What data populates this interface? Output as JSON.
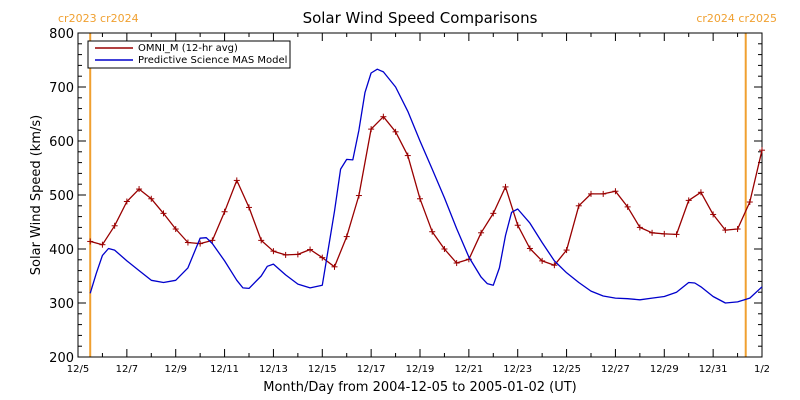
{
  "colors": {
    "omni": "#990000",
    "model": "#0000cc",
    "rotation_marker": "#f0a030",
    "axis": "#000000"
  },
  "chart_data": {
    "type": "line",
    "title": "Solar Wind Speed Comparisons",
    "xlabel": "Month/Day from 2004-12-05 to 2005-01-02 (UT)",
    "ylabel": "Solar Wind Speed (km/s)",
    "xlim": [
      "2004-12-05",
      "2005-01-02"
    ],
    "ylim": [
      200,
      800
    ],
    "x_ticks": [
      {
        "date": "2004-12-05",
        "label": "12/5"
      },
      {
        "date": "2004-12-07",
        "label": "12/7"
      },
      {
        "date": "2004-12-09",
        "label": "12/9"
      },
      {
        "date": "2004-12-11",
        "label": "12/11"
      },
      {
        "date": "2004-12-13",
        "label": "12/13"
      },
      {
        "date": "2004-12-15",
        "label": "12/15"
      },
      {
        "date": "2004-12-17",
        "label": "12/17"
      },
      {
        "date": "2004-12-19",
        "label": "12/19"
      },
      {
        "date": "2004-12-21",
        "label": "12/21"
      },
      {
        "date": "2004-12-23",
        "label": "12/23"
      },
      {
        "date": "2004-12-25",
        "label": "12/25"
      },
      {
        "date": "2004-12-27",
        "label": "12/27"
      },
      {
        "date": "2004-12-29",
        "label": "12/29"
      },
      {
        "date": "2004-12-31",
        "label": "12/31"
      },
      {
        "date": "2005-01-02",
        "label": "1/2"
      }
    ],
    "y_ticks": [
      200,
      300,
      400,
      500,
      600,
      700,
      800
    ],
    "legend_position": "top-left",
    "rotation_markers": [
      {
        "date": "2004-12-05 12:00",
        "label": "cr2023 cr2024",
        "align": "left"
      },
      {
        "date": "2005-01-01 08:00",
        "label": "cr2024 cr2025",
        "align": "right"
      }
    ],
    "series": [
      {
        "name": "OMNI_M (12-hr avg)",
        "color_key": "omni",
        "markers": true,
        "points": [
          [
            "2004-12-05 12:00",
            414
          ],
          [
            "2004-12-06 00:00",
            408
          ],
          [
            "2004-12-06 12:00",
            443
          ],
          [
            "2004-12-07 00:00",
            488
          ],
          [
            "2004-12-07 12:00",
            511
          ],
          [
            "2004-12-08 00:00",
            493
          ],
          [
            "2004-12-08 12:00",
            466
          ],
          [
            "2004-12-09 00:00",
            437
          ],
          [
            "2004-12-09 12:00",
            412
          ],
          [
            "2004-12-10 00:00",
            410
          ],
          [
            "2004-12-10 12:00",
            416
          ],
          [
            "2004-12-11 00:00",
            469
          ],
          [
            "2004-12-11 12:00",
            527
          ],
          [
            "2004-12-12 00:00",
            477
          ],
          [
            "2004-12-12 12:00",
            416
          ],
          [
            "2004-12-13 00:00",
            396
          ],
          [
            "2004-12-13 12:00",
            389
          ],
          [
            "2004-12-14 00:00",
            390
          ],
          [
            "2004-12-14 12:00",
            399
          ],
          [
            "2004-12-15 00:00",
            384
          ],
          [
            "2004-12-15 12:00",
            367
          ],
          [
            "2004-12-16 00:00",
            423
          ],
          [
            "2004-12-16 12:00",
            499
          ],
          [
            "2004-12-17 00:00",
            622
          ],
          [
            "2004-12-17 12:00",
            645
          ],
          [
            "2004-12-18 00:00",
            617
          ],
          [
            "2004-12-18 12:00",
            573
          ],
          [
            "2004-12-19 00:00",
            493
          ],
          [
            "2004-12-19 12:00",
            432
          ],
          [
            "2004-12-20 00:00",
            400
          ],
          [
            "2004-12-20 12:00",
            374
          ],
          [
            "2004-12-21 00:00",
            381
          ],
          [
            "2004-12-21 12:00",
            430
          ],
          [
            "2004-12-22 00:00",
            466
          ],
          [
            "2004-12-22 12:00",
            515
          ],
          [
            "2004-12-23 00:00",
            444
          ],
          [
            "2004-12-23 12:00",
            401
          ],
          [
            "2004-12-24 00:00",
            378
          ],
          [
            "2004-12-24 12:00",
            370
          ],
          [
            "2004-12-25 00:00",
            398
          ],
          [
            "2004-12-25 12:00",
            480
          ],
          [
            "2004-12-26 00:00",
            502
          ],
          [
            "2004-12-26 12:00",
            502
          ],
          [
            "2004-12-27 00:00",
            507
          ],
          [
            "2004-12-27 12:00",
            478
          ],
          [
            "2004-12-28 00:00",
            440
          ],
          [
            "2004-12-28 12:00",
            430
          ],
          [
            "2004-12-29 00:00",
            428
          ],
          [
            "2004-12-29 12:00",
            427
          ],
          [
            "2004-12-30 00:00",
            490
          ],
          [
            "2004-12-30 12:00",
            505
          ],
          [
            "2004-12-31 00:00",
            464
          ],
          [
            "2004-12-31 12:00",
            435
          ],
          [
            "2005-01-01 00:00",
            437
          ],
          [
            "2005-01-01 12:00",
            487
          ],
          [
            "2005-01-02 00:00",
            583
          ]
        ]
      },
      {
        "name": "Predictive Science MAS Model",
        "color_key": "model",
        "markers": false,
        "points": [
          [
            "2004-12-05 12:00",
            318
          ],
          [
            "2004-12-05 18:00",
            355
          ],
          [
            "2004-12-06 00:00",
            388
          ],
          [
            "2004-12-06 06:00",
            401
          ],
          [
            "2004-12-06 12:00",
            398
          ],
          [
            "2004-12-07 00:00",
            378
          ],
          [
            "2004-12-07 12:00",
            360
          ],
          [
            "2004-12-08 00:00",
            342
          ],
          [
            "2004-12-08 12:00",
            338
          ],
          [
            "2004-12-09 00:00",
            342
          ],
          [
            "2004-12-09 12:00",
            365
          ],
          [
            "2004-12-10 00:00",
            420
          ],
          [
            "2004-12-10 06:00",
            421
          ],
          [
            "2004-12-10 12:00",
            410
          ],
          [
            "2004-12-11 00:00",
            378
          ],
          [
            "2004-12-11 12:00",
            342
          ],
          [
            "2004-12-11 18:00",
            328
          ],
          [
            "2004-12-12 00:00",
            327
          ],
          [
            "2004-12-12 12:00",
            350
          ],
          [
            "2004-12-12 18:00",
            368
          ],
          [
            "2004-12-13 00:00",
            372
          ],
          [
            "2004-12-13 12:00",
            352
          ],
          [
            "2004-12-14 00:00",
            335
          ],
          [
            "2004-12-14 12:00",
            328
          ],
          [
            "2004-12-15 00:00",
            333
          ],
          [
            "2004-12-15 12:00",
            470
          ],
          [
            "2004-12-15 18:00",
            548
          ],
          [
            "2004-12-16 00:00",
            566
          ],
          [
            "2004-12-16 06:00",
            565
          ],
          [
            "2004-12-16 12:00",
            620
          ],
          [
            "2004-12-16 18:00",
            690
          ],
          [
            "2004-12-17 00:00",
            726
          ],
          [
            "2004-12-17 06:00",
            733
          ],
          [
            "2004-12-17 12:00",
            728
          ],
          [
            "2004-12-18 00:00",
            700
          ],
          [
            "2004-12-18 12:00",
            655
          ],
          [
            "2004-12-19 00:00",
            600
          ],
          [
            "2004-12-19 12:00",
            548
          ],
          [
            "2004-12-20 00:00",
            495
          ],
          [
            "2004-12-20 12:00",
            438
          ],
          [
            "2004-12-21 00:00",
            385
          ],
          [
            "2004-12-21 12:00",
            348
          ],
          [
            "2004-12-21 18:00",
            336
          ],
          [
            "2004-12-22 00:00",
            333
          ],
          [
            "2004-12-22 06:00",
            365
          ],
          [
            "2004-12-22 12:00",
            425
          ],
          [
            "2004-12-22 18:00",
            468
          ],
          [
            "2004-12-23 00:00",
            474
          ],
          [
            "2004-12-23 12:00",
            448
          ],
          [
            "2004-12-24 00:00",
            412
          ],
          [
            "2004-12-24 12:00",
            378
          ],
          [
            "2004-12-25 00:00",
            356
          ],
          [
            "2004-12-25 12:00",
            338
          ],
          [
            "2004-12-26 00:00",
            322
          ],
          [
            "2004-12-26 12:00",
            313
          ],
          [
            "2004-12-27 00:00",
            309
          ],
          [
            "2004-12-27 12:00",
            308
          ],
          [
            "2004-12-28 00:00",
            306
          ],
          [
            "2004-12-28 12:00",
            309
          ],
          [
            "2004-12-29 00:00",
            312
          ],
          [
            "2004-12-29 12:00",
            320
          ],
          [
            "2004-12-30 00:00",
            338
          ],
          [
            "2004-12-30 06:00",
            337
          ],
          [
            "2004-12-30 12:00",
            330
          ],
          [
            "2004-12-31 00:00",
            312
          ],
          [
            "2004-12-31 12:00",
            300
          ],
          [
            "2005-01-01 00:00",
            302
          ],
          [
            "2005-01-01 12:00",
            309
          ],
          [
            "2005-01-02 00:00",
            330
          ]
        ]
      }
    ]
  }
}
